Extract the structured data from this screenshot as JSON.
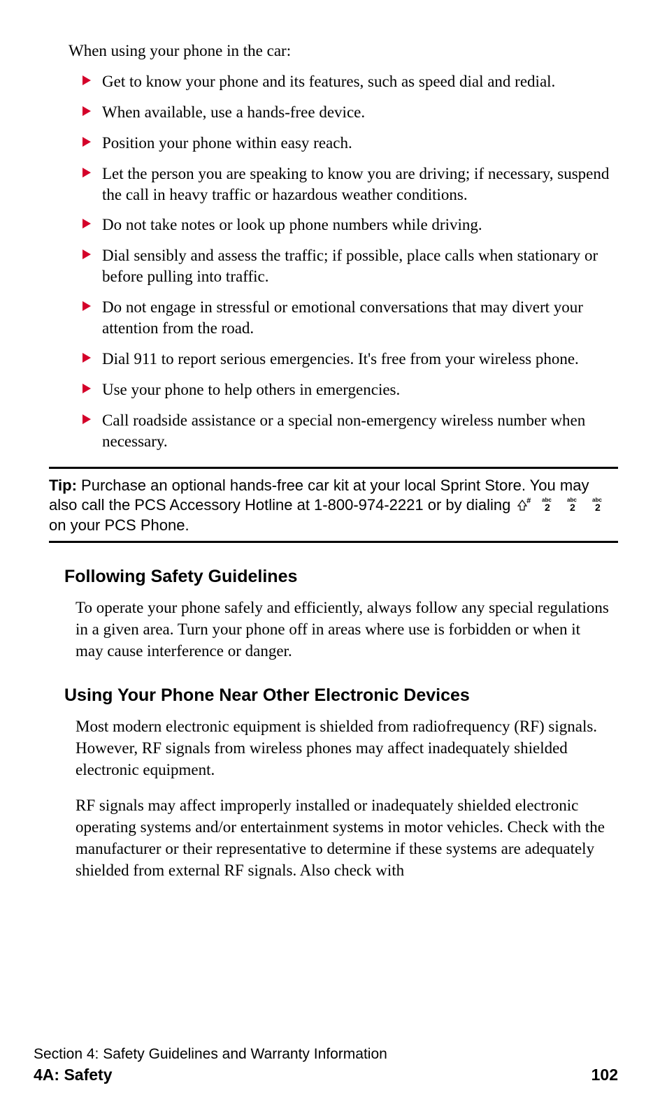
{
  "intro": "When using your phone in the car:",
  "bullets": [
    "Get to know your phone and its features, such as speed dial and redial.",
    "When available, use a hands-free device.",
    "Position your phone within easy reach.",
    "Let the person you are speaking to know you are driving; if necessary, suspend the call in heavy traffic or hazardous weather conditions.",
    "Do not take notes or look up phone numbers while driving.",
    "Dial sensibly and assess the traffic; if possible, place calls when stationary or before pulling into traffic.",
    "Do not engage in stressful or emotional conversations that may divert your attention from the road.",
    "Dial 911 to report serious emergencies. It's free from your wireless phone.",
    "Use your phone to help others in emergencies.",
    "Call roadside assistance or a special non-emergency wireless number when necessary."
  ],
  "bullet_color": "#d4002a",
  "tip": {
    "label": "Tip:",
    "text_before": "Purchase an optional hands-free car kit at your local Sprint Store. You may also call the PCS Accessory Hotline at 1-800-974-2221 or by dialing",
    "text_after": "on your PCS Phone."
  },
  "sections": [
    {
      "heading": "Following Safety Guidelines",
      "paras": [
        "To operate your phone safely and efficiently, always follow any special regulations in a given area. Turn your phone off in areas where use is forbidden or when it may cause interference or danger."
      ]
    },
    {
      "heading": "Using Your Phone Near Other Electronic Devices",
      "paras": [
        "Most modern electronic equipment is shielded from radiofrequency (RF) signals. However, RF signals from wireless phones may affect inadequately shielded electronic equipment.",
        "RF signals may affect improperly installed or inadequately shielded electronic operating systems and/or entertainment systems in motor vehicles. Check with the manufacturer or their representative to determine if these systems are adequately shielded from external RF signals. Also check with"
      ]
    }
  ],
  "footer": {
    "section_line": "Section 4: Safety Guidelines and Warranty Information",
    "chapter": "4A: Safety",
    "page": "102"
  }
}
